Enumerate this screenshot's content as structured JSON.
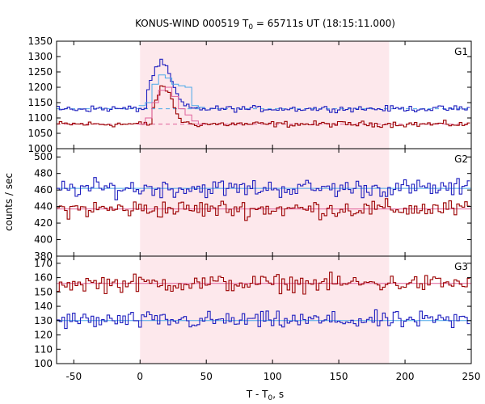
{
  "chart_data": {
    "type": "line",
    "title_main": "KONUS-WIND 000519 T",
    "title_sub": "0",
    "title_tail": " = 65711s UT (18:15:11.000)",
    "xlabel_main": "T - T",
    "xlabel_sub": "0",
    "xlabel_tail": ", s",
    "ylabel": "counts / sec",
    "xlim": [
      -63,
      250
    ],
    "xticks": [
      -50,
      0,
      50,
      100,
      150,
      200,
      250
    ],
    "shaded_interval": [
      0,
      188
    ],
    "grid": false,
    "colors": {
      "series_a": "#9b0000",
      "series_b": "#1f1fbf",
      "background_a": "#e0609a",
      "background_b": "#4aa8e8",
      "shade": "#fde8ec"
    },
    "panels": [
      {
        "label": "G1",
        "ylim": [
          1000,
          1350
        ],
        "yticks": [
          1000,
          1050,
          1100,
          1150,
          1200,
          1250,
          1300,
          1350
        ],
        "bg_a_level": 1080,
        "bg_b_level": 1130,
        "lc_b": {
          "x": [
            -5,
            0,
            5,
            10,
            15,
            20,
            25,
            30,
            35,
            40,
            45,
            50
          ],
          "y": [
            1130,
            1140,
            1160,
            1240,
            1285,
            1255,
            1210,
            1205,
            1200,
            1160,
            1140,
            1130
          ]
        },
        "lc_a": {
          "x": [
            0,
            5,
            10,
            15,
            20,
            25,
            30,
            35,
            40,
            45
          ],
          "y": [
            1090,
            1110,
            1140,
            1200,
            1235,
            1180,
            1150,
            1130,
            1110,
            1095
          ]
        },
        "lc_b_fit": {
          "x": [
            0,
            5,
            10,
            15,
            20,
            25,
            30,
            35,
            40,
            45
          ],
          "y": [
            1140,
            1150,
            1210,
            1240,
            1230,
            1210,
            1205,
            1200,
            1140,
            1135
          ]
        },
        "lc_a_fit": {
          "x": [
            0,
            5,
            10,
            15,
            20,
            25,
            30,
            35,
            40,
            45
          ],
          "y": [
            1080,
            1100,
            1150,
            1190,
            1200,
            1170,
            1130,
            1110,
            1090,
            1080
          ]
        }
      },
      {
        "label": "G2",
        "ylim": [
          380,
          510
        ],
        "yticks": [
          380,
          400,
          420,
          440,
          460,
          480,
          500
        ],
        "bg_a_level": 437,
        "bg_b_level": 462
      },
      {
        "label": "G3",
        "ylim": [
          100,
          175
        ],
        "yticks": [
          100,
          110,
          120,
          130,
          140,
          150,
          160,
          170
        ],
        "bg_a_level": 156,
        "bg_b_level": 130
      }
    ]
  }
}
